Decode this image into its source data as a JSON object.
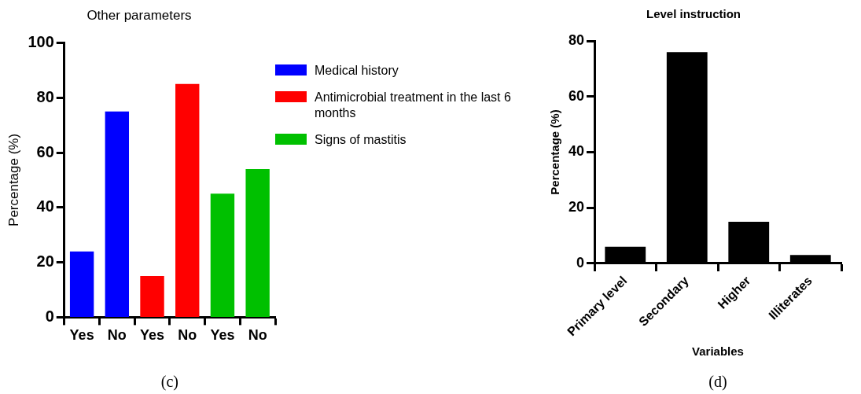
{
  "chart_data": [
    {
      "type": "bar",
      "title": "Other parameters",
      "ylabel": "Percentage (%)",
      "categories": [
        "Yes",
        "No",
        "Yes",
        "No",
        "Yes",
        "No"
      ],
      "series": [
        {
          "name": "Medical history",
          "color": "#0000ff",
          "values": [
            24,
            75,
            null,
            null,
            null,
            null
          ]
        },
        {
          "name": "Antimicrobial treatment in the last 6 months",
          "color": "#ff0000",
          "values": [
            null,
            null,
            15,
            85,
            null,
            null
          ]
        },
        {
          "name": "Signs of mastitis",
          "color": "#00c000",
          "values": [
            null,
            null,
            null,
            null,
            45,
            54
          ]
        }
      ],
      "ylim": [
        0,
        100
      ],
      "yticks": [
        0,
        20,
        40,
        60,
        80,
        100
      ],
      "grid": false,
      "legend": "right",
      "annotations": [
        "(c)"
      ]
    },
    {
      "type": "bar",
      "title": "Level instruction",
      "xlabel": "Variables",
      "ylabel": "Percentage (%)",
      "categories": [
        "Primary level",
        "Secondary",
        "Higher",
        "Illiterates"
      ],
      "series": [
        {
          "color": "#000000",
          "values": [
            6,
            76,
            15,
            3
          ]
        }
      ],
      "ylim": [
        0,
        80
      ],
      "yticks": [
        0,
        20,
        40,
        60,
        80
      ],
      "grid": false,
      "legend": false,
      "annotations": [
        "(d)"
      ]
    }
  ]
}
